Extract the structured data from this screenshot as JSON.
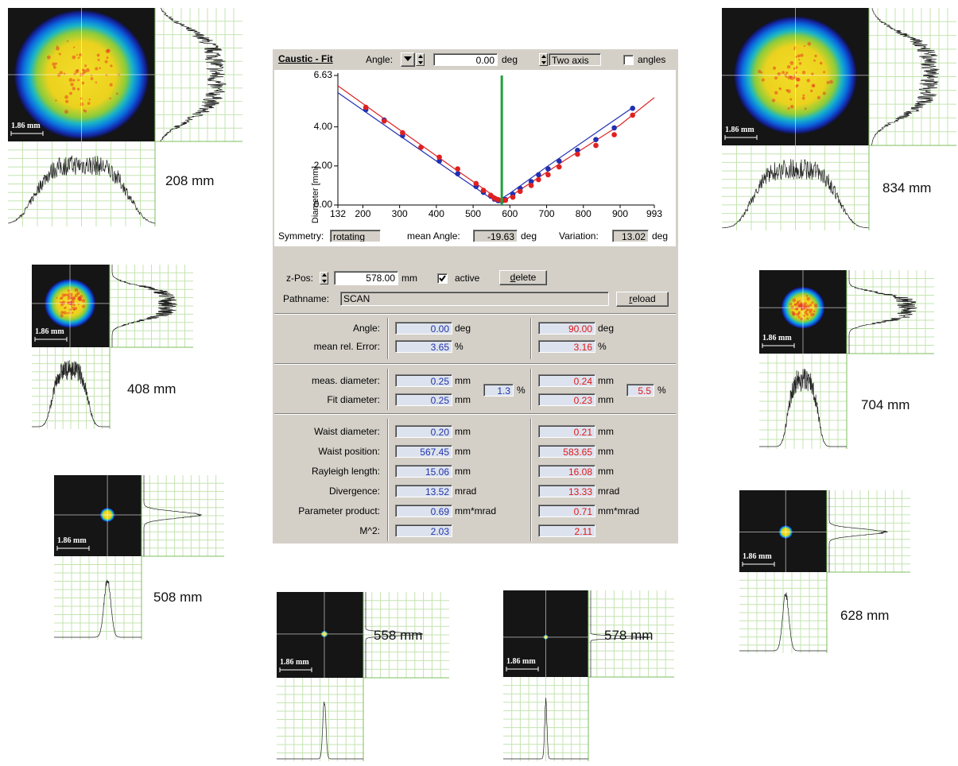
{
  "panel": {
    "title": "Caustic - Fit",
    "angle_label": "Angle:",
    "angle_value": "0.00",
    "angle_unit": "deg",
    "mode": "Two axis",
    "angles_label": "angles",
    "symmetry_label": "Symmetry:",
    "symmetry": "rotating",
    "mean_angle_label": "mean Angle:",
    "mean_angle": "-19.63",
    "mean_angle_unit": "deg",
    "variation_label": "Variation:",
    "variation": "13.02",
    "variation_unit": "deg",
    "zpos_label": "z-Pos:",
    "zpos": "578.00",
    "zpos_unit": "mm",
    "active_label": "active",
    "delete_button": "delete",
    "pathname_label": "Pathname:",
    "pathname": "SCAN",
    "reload_button": "reload"
  },
  "table": {
    "rows": [
      [
        "Angle:",
        "0.00",
        "deg",
        "90.00",
        "deg"
      ],
      [
        "mean rel. Error:",
        "3.65",
        "%",
        "3.16",
        "%"
      ],
      [
        "meas. diameter:",
        "0.25",
        "mm",
        "0.24",
        "mm"
      ],
      [
        "Fit diameter:",
        "0.25",
        "mm",
        "0.23",
        "mm"
      ],
      [
        "Waist diameter:",
        "0.20",
        "mm",
        "0.21",
        "mm"
      ],
      [
        "Waist position:",
        "567.45",
        "mm",
        "583.65",
        "mm"
      ],
      [
        "Rayleigh length:",
        "15.06",
        "mm",
        "16.08",
        "mm"
      ],
      [
        "Divergence:",
        "13.52",
        "mrad",
        "13.33",
        "mrad"
      ],
      [
        "Parameter product:",
        "0.69",
        "mm*mrad",
        "0.71",
        "mm*mrad"
      ],
      [
        "M^2:",
        "2.03",
        "",
        "2.11",
        ""
      ]
    ],
    "deviation": {
      "left": "1.3",
      "left_unit": "%",
      "right": "5.5",
      "right_unit": "%"
    }
  },
  "chart_data": {
    "type": "scatter",
    "y_label": "Diameter [mm]",
    "xlim": [
      132,
      993
    ],
    "xticks": [
      132,
      200,
      300,
      400,
      500,
      600,
      700,
      800,
      900,
      993
    ],
    "ylim": [
      0,
      6.63
    ],
    "yticks": [
      {
        "value": 0,
        "label": "0.00"
      },
      {
        "value": 2,
        "label": "2.00"
      },
      {
        "value": 4,
        "label": "4.00"
      },
      {
        "value": 6.63,
        "label": "6.63"
      }
    ],
    "grid": false,
    "cursor_x": 578,
    "cursor_color": "#1fa03a",
    "series": [
      {
        "mode": "line",
        "color": "#2030b0",
        "x": [
          132,
          300,
          450,
          540,
          567,
          600,
          700,
          850,
          935
        ],
        "values": [
          5.75,
          3.55,
          1.6,
          0.45,
          0.2,
          0.6,
          1.95,
          3.9,
          5.0
        ]
      },
      {
        "mode": "line",
        "color": "#e02020",
        "x": [
          132,
          300,
          450,
          550,
          584,
          620,
          750,
          900,
          993
        ],
        "values": [
          6.1,
          3.85,
          1.85,
          0.55,
          0.21,
          0.68,
          2.3,
          4.1,
          5.5
        ]
      },
      {
        "mode": "markers",
        "color": "#2030b0",
        "x": [
          208,
          258,
          308,
          358,
          408,
          458,
          508,
          528,
          548,
          558,
          568,
          578,
          588,
          608,
          628,
          658,
          678,
          704,
          734,
          784,
          834,
          884,
          934
        ],
        "values": [
          4.88,
          4.35,
          3.55,
          2.95,
          2.25,
          1.6,
          0.95,
          0.65,
          0.45,
          0.3,
          0.22,
          0.2,
          0.28,
          0.55,
          0.85,
          1.2,
          1.55,
          1.85,
          2.25,
          2.8,
          3.35,
          3.95,
          4.95
        ]
      },
      {
        "mode": "markers",
        "color": "#e02020",
        "x": [
          208,
          258,
          308,
          358,
          408,
          458,
          508,
          528,
          548,
          558,
          568,
          578,
          588,
          608,
          628,
          658,
          678,
          704,
          734,
          784,
          834,
          884,
          934
        ],
        "values": [
          5.0,
          4.3,
          3.7,
          2.95,
          2.45,
          1.85,
          1.1,
          0.75,
          0.5,
          0.35,
          0.28,
          0.24,
          0.24,
          0.4,
          0.7,
          1.0,
          1.3,
          1.55,
          1.95,
          2.6,
          3.05,
          3.6,
          4.6
        ]
      }
    ]
  },
  "profiles": [
    {
      "scale": "1.86 mm",
      "distance": "208 mm"
    },
    {
      "scale": "1.86 mm",
      "distance": "408 mm"
    },
    {
      "scale": "1.86 mm",
      "distance": "508 mm"
    },
    {
      "scale": "1.86 mm",
      "distance": "558 mm"
    },
    {
      "scale": "1.86 mm",
      "distance": "578 mm"
    },
    {
      "scale": "1.86 mm",
      "distance": "628 mm"
    },
    {
      "scale": "1.86 mm",
      "distance": "704 mm"
    },
    {
      "scale": "1.86 mm",
      "distance": "834 mm"
    }
  ]
}
